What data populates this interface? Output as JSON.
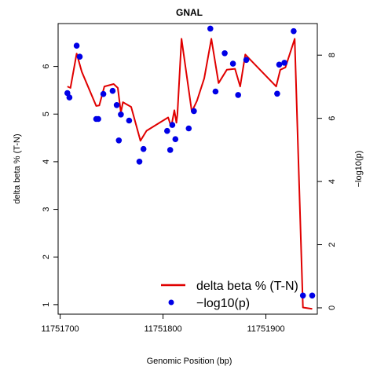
{
  "chart_data": {
    "type": "line",
    "title": "GNAL",
    "xlabel": "Genomic Position (bp)",
    "ylabel": "delta beta % (T-N)",
    "y2label": "−log10(p)",
    "xlim": [
      11751698,
      11751950
    ],
    "ylim": [
      0.8,
      6.9
    ],
    "y2lim": [
      -0.2,
      9.0
    ],
    "x_ticks": [
      11751700,
      11751800,
      11751900
    ],
    "y_ticks": [
      1,
      2,
      3,
      4,
      5,
      6
    ],
    "y2_ticks": [
      0,
      2,
      4,
      6,
      8
    ],
    "legend_position": "bottom-right",
    "grid": false,
    "series": [
      {
        "name": "delta beta % (T-N)",
        "kind": "line",
        "color": "#e00000",
        "x": [
          11751707,
          11751710,
          11751716,
          11751721,
          11751735,
          11751738,
          11751743,
          11751752,
          11751756,
          11751759,
          11751761,
          11751765,
          11751769,
          11751778,
          11751784,
          11751805,
          11751808,
          11751811,
          11751813,
          11751814,
          11751818,
          11751828,
          11751833,
          11751840,
          11751847,
          11751854,
          11751862,
          11751870,
          11751875,
          11751880,
          11751910,
          11751914,
          11751919,
          11751928,
          11751936,
          11751945
        ],
        "y": [
          5.58,
          5.55,
          6.27,
          5.89,
          5.17,
          5.18,
          5.58,
          5.63,
          5.55,
          5.03,
          5.25,
          5.2,
          5.15,
          4.44,
          4.65,
          4.93,
          4.73,
          5.08,
          4.82,
          5.0,
          6.58,
          5.05,
          5.28,
          5.75,
          6.58,
          5.65,
          5.93,
          5.95,
          5.58,
          6.25,
          5.58,
          5.93,
          5.98,
          6.58,
          0.94,
          0.91
        ]
      },
      {
        "name": "−log10(p)",
        "kind": "scatter",
        "color": "#0000e6",
        "x": [
          11751707,
          11751709,
          11751716,
          11751719,
          11751735,
          11751737,
          11751742,
          11751751,
          11751755,
          11751757,
          11751759,
          11751767,
          11751777,
          11751781,
          11751804,
          11751807,
          11751809,
          11751812,
          11751825,
          11751830,
          11751846,
          11751851,
          11751860,
          11751868,
          11751873,
          11751881,
          11751911,
          11751913,
          11751918,
          11751927,
          11751936,
          11751945
        ],
        "y": [
          6.8,
          6.66,
          8.3,
          7.95,
          5.98,
          5.98,
          6.77,
          6.87,
          6.42,
          5.3,
          6.12,
          5.93,
          4.63,
          5.03,
          5.6,
          5.0,
          5.79,
          5.34,
          5.68,
          6.23,
          8.84,
          6.85,
          8.06,
          7.73,
          6.74,
          7.85,
          6.78,
          7.7,
          7.76,
          8.76,
          0.39,
          0.39
        ]
      }
    ]
  }
}
